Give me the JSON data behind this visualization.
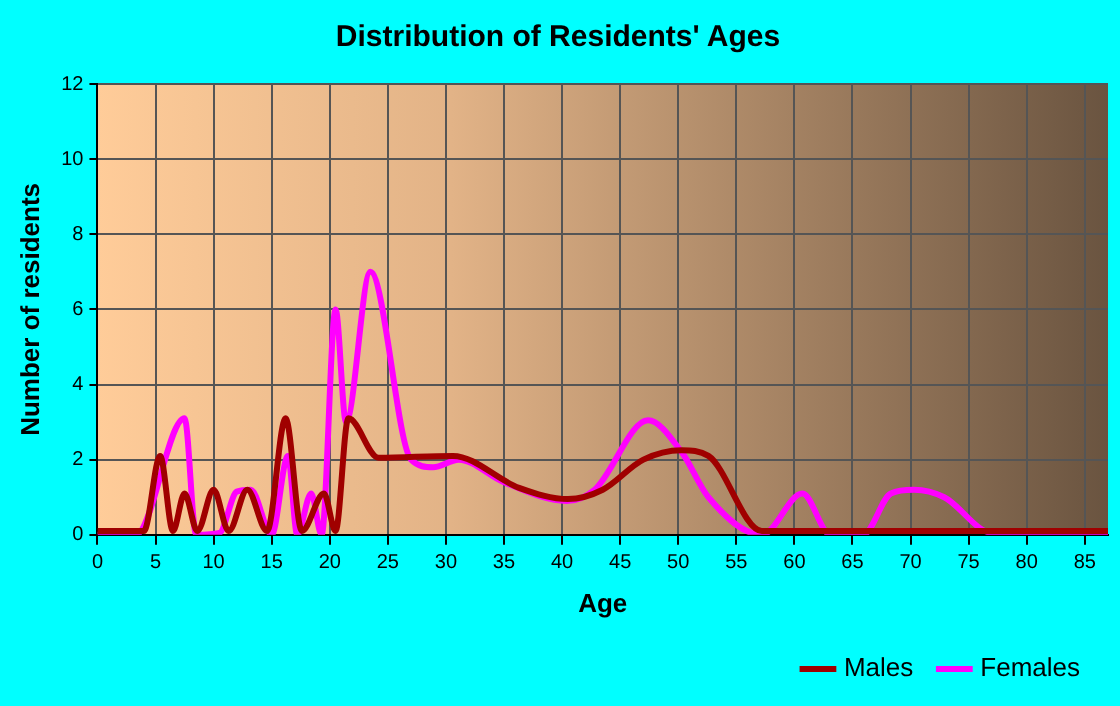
{
  "chart_data": {
    "type": "line",
    "title": "Distribution of Residents' Ages",
    "xlabel": "Age",
    "ylabel": "Number of residents",
    "xlim": [
      0,
      87
    ],
    "xticks": [
      0,
      5,
      10,
      15,
      20,
      25,
      30,
      35,
      40,
      45,
      50,
      55,
      60,
      65,
      70,
      75,
      80,
      85
    ],
    "ylim": [
      0,
      12
    ],
    "yticks": [
      0,
      2,
      4,
      6,
      8,
      10,
      12
    ],
    "grid": true,
    "legend": "bottom right",
    "marker": "none",
    "line_style": "solid",
    "series": [
      {
        "name": "Males",
        "color": "#a00000",
        "x": [
          0,
          4,
          5.4,
          6.5,
          7.5,
          8.6,
          10,
          11.3,
          12.9,
          14.6,
          16.2,
          17.6,
          19.5,
          20.5,
          21.6,
          24.2,
          30.6,
          36.3,
          40.5,
          43.5,
          47,
          50.3,
          52.6,
          57.2,
          60,
          87
        ],
        "values": [
          0.1,
          0.1,
          2.1,
          0.1,
          1.1,
          0.1,
          1.2,
          0.1,
          1.2,
          0.1,
          3.1,
          0.1,
          1.1,
          0.1,
          3.1,
          2.05,
          2.1,
          1.25,
          0.95,
          1.2,
          2,
          2.25,
          2.1,
          0.1,
          0.1,
          0.1
        ]
      },
      {
        "name": "Females",
        "color": "#ff00ff",
        "x": [
          0,
          3.3,
          7.5,
          8.5,
          10.5,
          12,
          13.2,
          15,
          16.4,
          17.2,
          18.4,
          19.3,
          20.5,
          21.4,
          23.5,
          27,
          28.9,
          31.1,
          35,
          40.4,
          42.8,
          47.4,
          50.3,
          52.6,
          57.2,
          60.7,
          63.1,
          65.9,
          68.3,
          70.3,
          72.9,
          77,
          87
        ],
        "values": [
          0,
          0,
          3.1,
          0,
          0.05,
          1.15,
          1.2,
          0,
          2.1,
          0,
          1.1,
          0,
          6,
          3,
          7,
          2,
          1.8,
          2,
          1.4,
          0.9,
          1.2,
          3.05,
          2.2,
          1,
          0,
          1.1,
          0,
          0,
          1.1,
          1.2,
          1,
          0.05,
          0
        ]
      }
    ]
  }
}
